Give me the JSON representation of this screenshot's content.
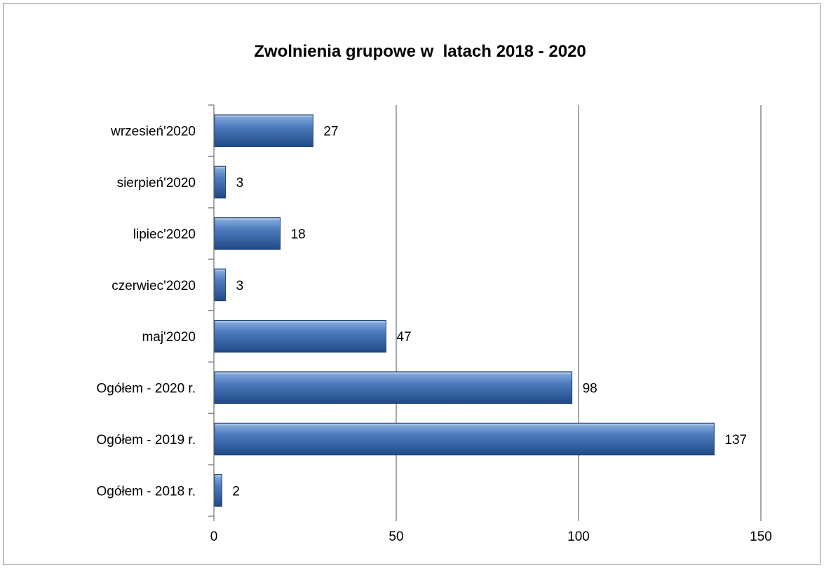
{
  "chart_data": {
    "type": "bar",
    "orientation": "horizontal",
    "title": "Zwolnienia grupowe w  latach 2018 - 2020",
    "categories": [
      "wrzesień'2020",
      "sierpień'2020",
      "lipiec'2020",
      "czerwiec'2020",
      "maj'2020",
      "Ogółem - 2020 r.",
      "Ogółem - 2019 r.",
      "Ogółem - 2018 r."
    ],
    "values": [
      27,
      3,
      18,
      3,
      47,
      98,
      137,
      2
    ],
    "xlim": [
      0,
      150
    ],
    "xticks": [
      0,
      50,
      100,
      150
    ],
    "grid": "vertical",
    "legend": "none",
    "bar_color": "#4f7dbf"
  }
}
